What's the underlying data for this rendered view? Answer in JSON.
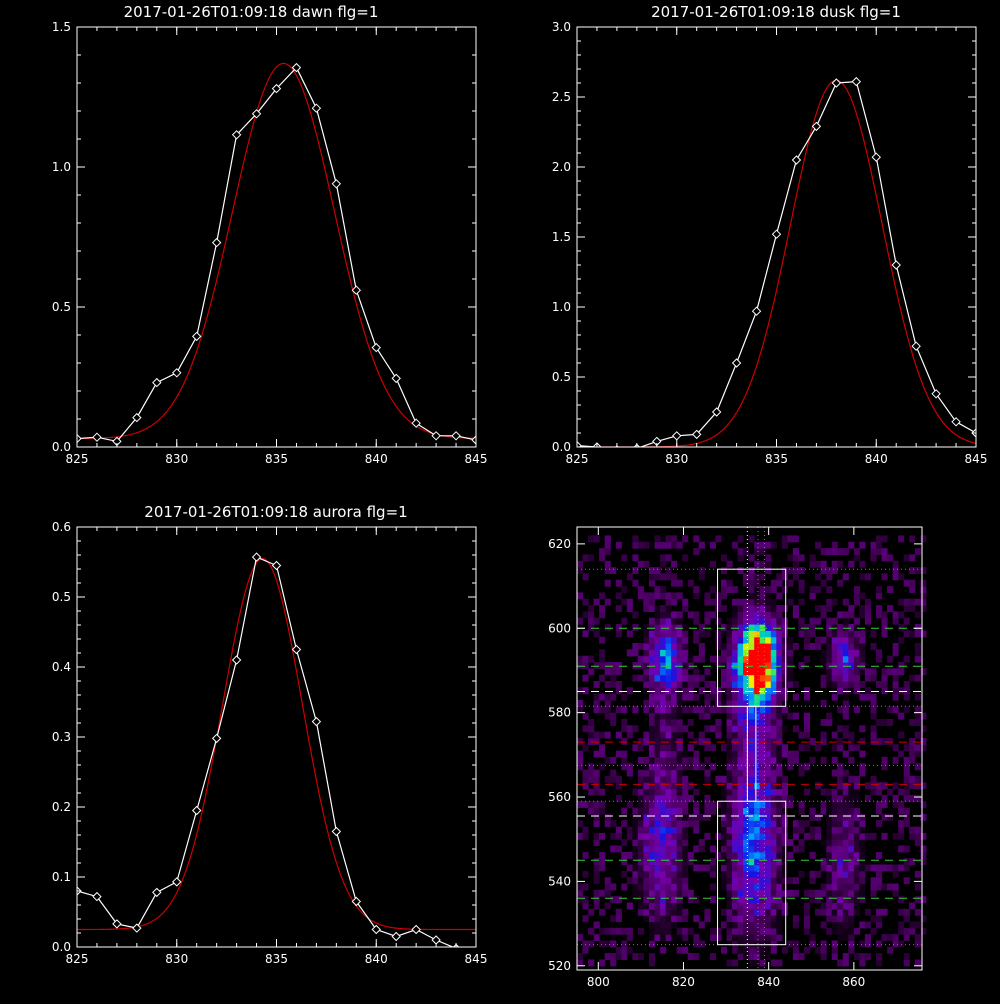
{
  "chart_data": [
    {
      "type": "line",
      "title": "2017-01-26T01:09:18 dawn flg=1",
      "xlim": [
        825,
        845
      ],
      "ylim": [
        0,
        1.5
      ],
      "xticks": [
        "825",
        "830",
        "835",
        "840",
        "845"
      ],
      "yticks": [
        "0.0",
        "0.5",
        "1.0",
        "1.5"
      ],
      "series": [
        {
          "color": "#ffffff",
          "marker": "diamond",
          "x": [
            825,
            826,
            827,
            828,
            829,
            830,
            831,
            832,
            833,
            834,
            835,
            836,
            837,
            838,
            839,
            840,
            841,
            842,
            843,
            844,
            845
          ],
          "y": [
            0.03,
            0.035,
            0.02,
            0.105,
            0.23,
            0.265,
            0.395,
            0.73,
            1.115,
            1.19,
            1.28,
            1.355,
            1.21,
            0.94,
            0.56,
            0.355,
            0.245,
            0.085,
            0.04,
            0.04,
            0.025
          ]
        },
        {
          "color": "#cc0000",
          "marker": "none",
          "gaussian": {
            "amp": 1.34,
            "center": 835.35,
            "sigma": 2.55,
            "offset": 0.03
          }
        }
      ]
    },
    {
      "type": "line",
      "title": "2017-01-26T01:09:18 dusk flg=1",
      "xlim": [
        825,
        845
      ],
      "ylim": [
        0,
        3.0
      ],
      "xticks": [
        "825",
        "830",
        "835",
        "840",
        "845"
      ],
      "yticks": [
        "0.0",
        "0.5",
        "1.0",
        "1.5",
        "2.0",
        "2.5",
        "3.0"
      ],
      "series": [
        {
          "color": "#ffffff",
          "marker": "diamond",
          "x": [
            825,
            826,
            827,
            828,
            829,
            830,
            831,
            832,
            833,
            834,
            835,
            836,
            837,
            838,
            839,
            840,
            841,
            842,
            843,
            844,
            845
          ],
          "y": [
            0.01,
            0.0,
            -0.02,
            -0.01,
            0.04,
            0.08,
            0.09,
            0.25,
            0.6,
            0.97,
            1.52,
            2.05,
            2.29,
            2.6,
            2.61,
            2.07,
            1.3,
            0.72,
            0.38,
            0.18,
            0.1
          ]
        },
        {
          "color": "#cc0000",
          "marker": "none",
          "gaussian": {
            "amp": 2.62,
            "center": 838.0,
            "sigma": 2.3,
            "offset": 0.0
          }
        }
      ]
    },
    {
      "type": "line",
      "title": "2017-01-26T01:09:18 aurora flg=1",
      "xlim": [
        825,
        845
      ],
      "ylim": [
        0,
        0.6
      ],
      "xticks": [
        "825",
        "830",
        "835",
        "840",
        "845"
      ],
      "yticks": [
        "0.0",
        "0.1",
        "0.2",
        "0.3",
        "0.4",
        "0.5",
        "0.6"
      ],
      "series": [
        {
          "color": "#ffffff",
          "marker": "diamond",
          "x": [
            825,
            826,
            827,
            828,
            829,
            830,
            831,
            832,
            833,
            834,
            835,
            836,
            837,
            838,
            839,
            840,
            841,
            842,
            843,
            844,
            845
          ],
          "y": [
            0.08,
            0.072,
            0.033,
            0.027,
            0.078,
            0.093,
            0.195,
            0.298,
            0.41,
            0.557,
            0.545,
            0.425,
            0.322,
            0.165,
            0.065,
            0.025,
            0.015,
            0.025,
            0.01,
            -0.002,
            -0.01
          ]
        },
        {
          "color": "#cc0000",
          "marker": "none",
          "gaussian": {
            "amp": 0.53,
            "center": 834.3,
            "sigma": 2.0,
            "offset": 0.025
          }
        }
      ]
    },
    {
      "type": "heatmap",
      "title": "",
      "xlim": [
        795,
        876
      ],
      "ylim": [
        519,
        624
      ],
      "xticks": [
        "800",
        "820",
        "840",
        "860"
      ],
      "yticks": [
        "520",
        "540",
        "560",
        "580",
        "600",
        "620"
      ],
      "blobs": [
        {
          "x": 837,
          "y": 592,
          "sx": 2.8,
          "sy": 5.0,
          "amp": 1.0
        },
        {
          "x": 836,
          "y": 588,
          "sx": 3.0,
          "sy": 8.0,
          "amp": 0.45
        },
        {
          "x": 815,
          "y": 592,
          "sx": 2.4,
          "sy": 5.0,
          "amp": 0.42
        },
        {
          "x": 857,
          "y": 592,
          "sx": 2.2,
          "sy": 4.0,
          "amp": 0.3
        },
        {
          "x": 836,
          "y": 548,
          "sx": 3.2,
          "sy": 12.0,
          "amp": 0.4
        },
        {
          "x": 814,
          "y": 547,
          "sx": 3.0,
          "sy": 10.0,
          "amp": 0.25
        },
        {
          "x": 857,
          "y": 545,
          "sx": 2.4,
          "sy": 10.0,
          "amp": 0.14
        },
        {
          "x": 836,
          "y": 570,
          "sx": 3.0,
          "sy": 10.0,
          "amp": 0.12
        },
        {
          "x": 815,
          "y": 570,
          "sx": 2.6,
          "sy": 10.0,
          "amp": 0.07
        }
      ],
      "boxes": [
        {
          "x0": 828,
          "x1": 844,
          "y0": 581.5,
          "y1": 614
        },
        {
          "x0": 828,
          "x1": 844,
          "y0": 525,
          "y1": 559
        },
        {
          "x0": 835,
          "x1": 837,
          "y0": 559,
          "y1": 581.5
        }
      ],
      "hlines": [
        {
          "y": 614,
          "color": "#cc44cc",
          "style": "dotted"
        },
        {
          "y": 600,
          "color": "#33cc33",
          "style": "dashed"
        },
        {
          "y": 591,
          "color": "#33cc33",
          "style": "dashed"
        },
        {
          "y": 585,
          "color": "#ffffff",
          "style": "dashed"
        },
        {
          "y": 581.5,
          "color": "#cc44cc",
          "style": "dotted"
        },
        {
          "y": 573,
          "color": "#cc0000",
          "style": "dashed"
        },
        {
          "y": 567.5,
          "color": "#cc44cc",
          "style": "dotted"
        },
        {
          "y": 563,
          "color": "#cc0000",
          "style": "dashed"
        },
        {
          "y": 559,
          "color": "#cc44cc",
          "style": "dotted"
        },
        {
          "y": 555.5,
          "color": "#ffffff",
          "style": "dashed"
        },
        {
          "y": 545,
          "color": "#33cc33",
          "style": "dashed"
        },
        {
          "y": 536,
          "color": "#33cc33",
          "style": "dashed"
        },
        {
          "y": 525,
          "color": "#cc44cc",
          "style": "dotted"
        }
      ],
      "vlines": [
        {
          "x": 835,
          "color": "#ffffff",
          "style": "dotted"
        },
        {
          "x": 837.5,
          "color": "#cc44cc",
          "style": "dotted"
        },
        {
          "x": 839,
          "color": "#cc44cc",
          "style": "dotted"
        }
      ]
    }
  ]
}
